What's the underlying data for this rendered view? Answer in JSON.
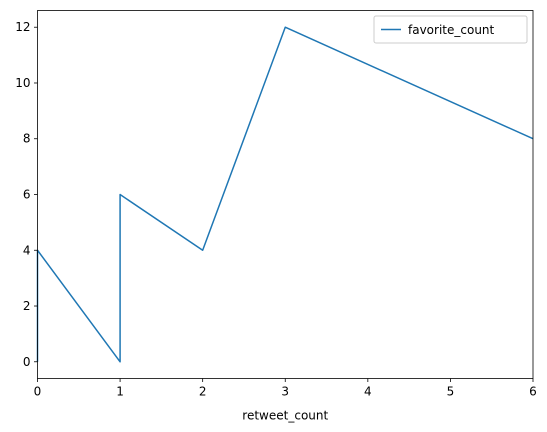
{
  "chart_data": {
    "type": "line",
    "title": "",
    "xlabel": "retweet_count",
    "ylabel": "",
    "xlim": [
      0,
      6
    ],
    "ylim": [
      -0.6,
      12.6
    ],
    "xticks": [
      0,
      1,
      2,
      3,
      4,
      5,
      6
    ],
    "yticks": [
      0,
      2,
      4,
      6,
      8,
      10,
      12
    ],
    "grid": false,
    "legend_position": "top-right",
    "series": [
      {
        "name": "favorite_count",
        "color": "#1f77b4",
        "x": [
          0,
          0,
          1,
          1,
          2,
          3,
          6
        ],
        "y": [
          0,
          4,
          0,
          6,
          4,
          12,
          8
        ]
      }
    ]
  }
}
